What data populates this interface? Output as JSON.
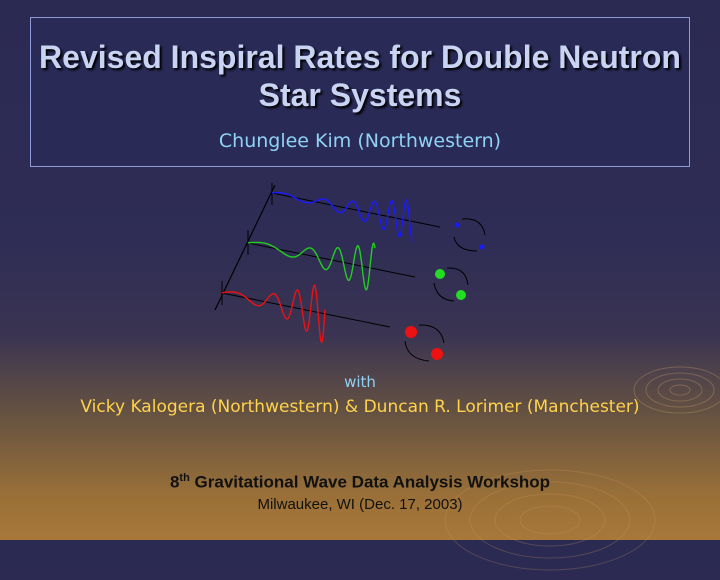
{
  "slide": {
    "title": "Revised Inspiral Rates for Double Neutron Star Systems",
    "author": "Chunglee Kim (Northwestern)",
    "with_label": "with",
    "coauthors": "Vicky Kalogera (Northwestern) & Duncan R. Lorimer (Manchester)",
    "workshop_ordinal_number": "8",
    "workshop_ordinal_suffix": "th",
    "workshop_name": " Gravitational Wave Data Analysis Workshop",
    "venue": "Milwaukee, WI (Dec. 17, 2003)"
  },
  "colors": {
    "wave_blue": "#1a1aff",
    "wave_green": "#22cc22",
    "wave_red": "#ee1111",
    "author_text": "#8fd2f5",
    "coauthor_text": "#ffd34a",
    "title_text": "#c9d4f2"
  }
}
